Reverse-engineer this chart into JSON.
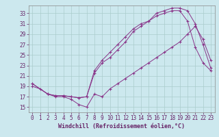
{
  "background_color": "#cce8ee",
  "grid_color": "#aacccc",
  "line_color": "#883388",
  "marker": "+",
  "xlabel": "Windchill (Refroidissement éolien,°C)",
  "xlabel_fontsize": 6.0,
  "tick_fontsize": 5.5,
  "xlim": [
    -0.5,
    23.5
  ],
  "ylim": [
    14.0,
    34.5
  ],
  "xticks": [
    0,
    1,
    2,
    3,
    4,
    5,
    6,
    7,
    8,
    9,
    10,
    11,
    12,
    13,
    14,
    15,
    16,
    17,
    18,
    19,
    20,
    21,
    22,
    23
  ],
  "yticks": [
    15,
    17,
    19,
    21,
    23,
    25,
    27,
    29,
    31,
    33
  ],
  "line1_x": [
    0,
    1,
    2,
    3,
    4,
    5,
    6,
    7,
    8,
    9,
    10,
    11,
    12,
    13,
    14,
    15,
    16,
    17,
    18,
    19,
    20,
    21,
    22,
    23
  ],
  "line1_y": [
    19.0,
    18.5,
    17.5,
    17.0,
    17.0,
    16.5,
    15.5,
    15.0,
    17.5,
    17.0,
    18.5,
    19.5,
    20.5,
    21.5,
    22.5,
    23.5,
    24.5,
    25.5,
    26.5,
    27.5,
    29.0,
    30.5,
    28.0,
    24.0
  ],
  "line2_x": [
    0,
    2,
    3,
    4,
    5,
    6,
    7,
    8,
    9,
    10,
    11,
    12,
    13,
    14,
    15,
    16,
    17,
    18,
    19,
    20,
    21,
    22,
    23
  ],
  "line2_y": [
    19.5,
    17.5,
    17.2,
    17.2,
    17.0,
    16.8,
    17.0,
    22.0,
    24.0,
    25.5,
    27.0,
    28.5,
    30.0,
    31.0,
    31.5,
    32.5,
    33.0,
    33.5,
    33.5,
    31.5,
    26.5,
    23.5,
    22.0
  ],
  "line3_x": [
    0,
    2,
    3,
    4,
    5,
    6,
    7,
    8,
    9,
    10,
    11,
    12,
    13,
    14,
    15,
    16,
    17,
    18,
    19,
    20,
    21,
    22,
    23
  ],
  "line3_y": [
    19.5,
    17.5,
    17.2,
    17.2,
    17.0,
    16.8,
    17.0,
    21.5,
    23.5,
    24.5,
    26.0,
    27.5,
    29.5,
    30.5,
    31.5,
    33.0,
    33.5,
    34.0,
    34.0,
    33.5,
    31.0,
    27.0,
    22.5
  ]
}
